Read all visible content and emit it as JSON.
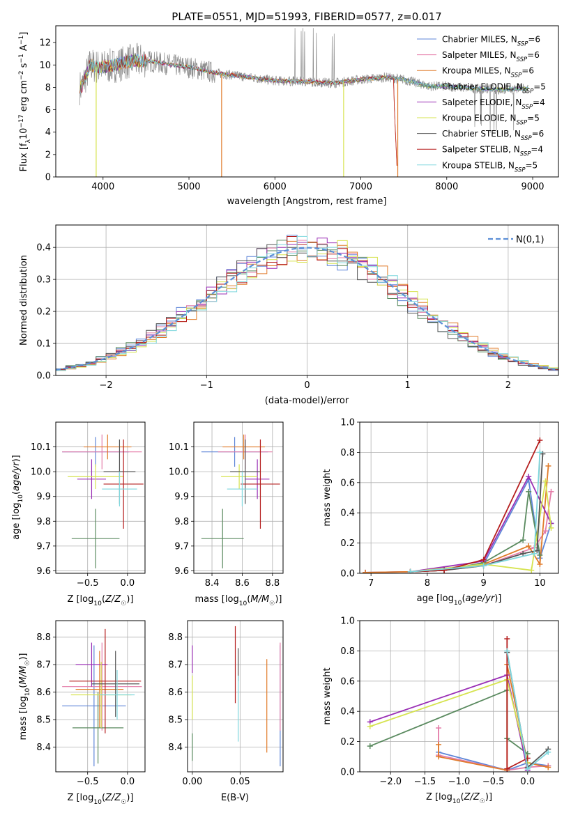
{
  "figure": {
    "title": "PLATE=0551, MJD=51993, FIBERID=0577, z=0.017"
  },
  "chart_data": [
    {
      "id": "spectrum",
      "type": "line",
      "title": "PLATE=0551, MJD=51993, FIBERID=0577, z=0.017",
      "xlabel": "wavelength [Angstrom, rest frame]",
      "ylabel": "Flux [f_λ10^{-17} erg cm^{-2} s^{-1} A^{-1}]",
      "xlim": [
        3450,
        9300
      ],
      "ylim": [
        0,
        13.5
      ],
      "xticks": [
        4000,
        5000,
        6000,
        7000,
        8000,
        9000
      ],
      "yticks": [
        0,
        2,
        4,
        6,
        8,
        10,
        12
      ],
      "grid": false,
      "legend_position": "top-right",
      "data_approx": {
        "x": [
          3750,
          3850,
          3950,
          4100,
          4300,
          4500,
          4800,
          5000,
          5300,
          5600,
          6000,
          6400,
          6700,
          7000,
          7300,
          7500,
          7800,
          8000,
          8300,
          8600,
          8900
        ],
        "y": [
          8.0,
          10.0,
          9.8,
          9.9,
          10.3,
          10.4,
          10.0,
          9.8,
          9.3,
          9.0,
          8.6,
          8.5,
          8.4,
          8.7,
          8.9,
          8.7,
          8.1,
          8.1,
          7.9,
          7.8,
          7.9
        ]
      },
      "series": [
        {
          "name": "Chabrier MILES, N_SSP=6",
          "name_main": "Chabrier MILES, N",
          "name_sub": "SSP",
          "name_tail": "=6",
          "color": "#5f86d8"
        },
        {
          "name": "Salpeter MILES, N_SSP=6",
          "name_main": "Salpeter MILES, N",
          "name_sub": "SSP",
          "name_tail": "=6",
          "color": "#e47ca8"
        },
        {
          "name": "Kroupa MILES, N_SSP=6",
          "name_main": "Kroupa MILES, N",
          "name_sub": "SSP",
          "name_tail": "=6",
          "color": "#e07b2a"
        },
        {
          "name": "Chabrier ELODIE, N_SSP=5",
          "name_main": "Chabrier ELODIE, N",
          "name_sub": "SSP",
          "name_tail": "=5",
          "color": "#5a8a5f"
        },
        {
          "name": "Salpeter ELODIE, N_SSP=4",
          "name_main": "Salpeter ELODIE, N",
          "name_sub": "SSP",
          "name_tail": "=4",
          "color": "#9a2fb5"
        },
        {
          "name": "Kroupa ELODIE, N_SSP=5",
          "name_main": "Kroupa ELODIE, N",
          "name_sub": "SSP",
          "name_tail": "=5",
          "color": "#d6e34f"
        },
        {
          "name": "Chabrier STELIB, N_SSP=6",
          "name_main": "Chabrier STELIB, N",
          "name_sub": "SSP",
          "name_tail": "=6",
          "color": "#555555"
        },
        {
          "name": "Salpeter STELIB, N_SSP=4",
          "name_main": "Salpeter STELIB, N",
          "name_sub": "SSP",
          "name_tail": "=4",
          "color": "#b51e1e"
        },
        {
          "name": "Kroupa STELIB, N_SSP=5",
          "name_main": "Kroupa STELIB, N",
          "name_sub": "SSP",
          "name_tail": "=5",
          "color": "#7fd7dd"
        }
      ],
      "data_color": "#8c8c8c"
    },
    {
      "id": "residuals",
      "type": "histogram",
      "xlabel": "(data-model)/error",
      "ylabel": "Normed distribution",
      "xlim": [
        -2.5,
        2.5
      ],
      "ylim": [
        0,
        0.47
      ],
      "xticks": [
        -2,
        -1,
        0,
        1,
        2
      ],
      "yticks": [
        0.0,
        0.1,
        0.2,
        0.3,
        0.4
      ],
      "grid": true,
      "legend_position": "top-right",
      "reference_curve": {
        "name": "N(0,1)",
        "mu": 0,
        "sigma": 1,
        "color": "#5b8ed6",
        "dashed": true
      },
      "bin_width": 0.1
    },
    {
      "id": "age_vs_Z",
      "type": "errorbar",
      "xlabel": "Z [log10(Z/Z☉)]",
      "ylabel": "age [log10(age/yr)]",
      "xlim": [
        -0.9,
        0.22
      ],
      "ylim": [
        9.59,
        10.2
      ],
      "xticks": [
        -0.5,
        0.0
      ],
      "yticks": [
        9.6,
        9.7,
        9.8,
        9.9,
        10.0,
        10.1
      ],
      "grid": true,
      "points": [
        {
          "color": "#5f86d8",
          "x": -0.4,
          "xerr": 0.42,
          "y": 10.08,
          "yerr": 0.06
        },
        {
          "color": "#e47ca8",
          "x": -0.32,
          "xerr": 0.5,
          "y": 10.08,
          "yerr": 0.07
        },
        {
          "color": "#e07b2a",
          "x": -0.25,
          "xerr": 0.3,
          "y": 10.1,
          "yerr": 0.05
        },
        {
          "color": "#5a8a5f",
          "x": -0.4,
          "xerr": 0.3,
          "y": 9.73,
          "yerr": 0.12
        },
        {
          "color": "#9a2fb5",
          "x": -0.45,
          "xerr": 0.18,
          "y": 9.97,
          "yerr": 0.08
        },
        {
          "color": "#d6e34f",
          "x": -0.4,
          "xerr": 0.35,
          "y": 9.98,
          "yerr": 0.05
        },
        {
          "color": "#555555",
          "x": -0.1,
          "xerr": 0.2,
          "y": 10.0,
          "yerr": 0.13
        },
        {
          "color": "#b51e1e",
          "x": -0.05,
          "xerr": 0.25,
          "y": 9.95,
          "yerr": 0.18
        },
        {
          "color": "#7fd7dd",
          "x": -0.1,
          "xerr": 0.22,
          "y": 9.93,
          "yerr": 0.07
        }
      ]
    },
    {
      "id": "age_vs_mass",
      "type": "errorbar",
      "xlabel": "mass [log10(M/M☉)]",
      "ylabel": "",
      "xlim": [
        8.28,
        8.87
      ],
      "ylim": [
        9.59,
        10.2
      ],
      "xticks": [
        8.4,
        8.6,
        8.8
      ],
      "yticks": [
        9.6,
        9.7,
        9.8,
        9.9,
        10.0,
        10.1
      ],
      "grid": true,
      "points": [
        {
          "color": "#5f86d8",
          "x": 8.55,
          "xerr": 0.22,
          "y": 10.08,
          "yerr": 0.06
        },
        {
          "color": "#e47ca8",
          "x": 8.62,
          "xerr": 0.18,
          "y": 10.08,
          "yerr": 0.07
        },
        {
          "color": "#e07b2a",
          "x": 8.61,
          "xerr": 0.14,
          "y": 10.1,
          "yerr": 0.05
        },
        {
          "color": "#5a8a5f",
          "x": 8.47,
          "xerr": 0.14,
          "y": 9.73,
          "yerr": 0.12
        },
        {
          "color": "#9a2fb5",
          "x": 8.7,
          "xerr": 0.08,
          "y": 9.97,
          "yerr": 0.08
        },
        {
          "color": "#d6e34f",
          "x": 8.58,
          "xerr": 0.12,
          "y": 9.98,
          "yerr": 0.05
        },
        {
          "color": "#555555",
          "x": 8.62,
          "xerr": 0.1,
          "y": 10.0,
          "yerr": 0.13
        },
        {
          "color": "#b51e1e",
          "x": 8.72,
          "xerr": 0.13,
          "y": 9.95,
          "yerr": 0.18
        },
        {
          "color": "#7fd7dd",
          "x": 8.6,
          "xerr": 0.1,
          "y": 9.93,
          "yerr": 0.07
        }
      ]
    },
    {
      "id": "weight_vs_age",
      "type": "line",
      "xlabel": "age [log10(age/yr)]",
      "ylabel": "mass weight",
      "xlim": [
        6.8,
        10.33
      ],
      "ylim": [
        0,
        1.0
      ],
      "xticks": [
        7,
        8,
        9,
        10
      ],
      "yticks": [
        0.0,
        0.2,
        0.4,
        0.6,
        0.8,
        1.0
      ],
      "grid": true,
      "series": [
        {
          "color": "#5f86d8",
          "x": [
            6.9,
            7.7,
            8.3,
            9.0,
            9.8,
            10.0,
            10.2
          ],
          "y": [
            0.005,
            0.01,
            0.02,
            0.06,
            0.62,
            0.1,
            0.33
          ]
        },
        {
          "color": "#e47ca8",
          "x": [
            6.9,
            7.7,
            8.3,
            9.0,
            9.9,
            10.1,
            10.2
          ],
          "y": [
            0.005,
            0.01,
            0.02,
            0.05,
            0.17,
            0.28,
            0.54
          ]
        },
        {
          "color": "#e07b2a",
          "x": [
            6.9,
            7.7,
            8.3,
            9.0,
            9.8,
            10.0,
            10.15
          ],
          "y": [
            0.005,
            0.01,
            0.02,
            0.06,
            0.18,
            0.06,
            0.71
          ]
        },
        {
          "color": "#5a8a5f",
          "x": [
            7.7,
            8.3,
            9.0,
            9.7,
            9.8,
            10.0
          ],
          "y": [
            0.01,
            0.02,
            0.07,
            0.22,
            0.54,
            0.12
          ]
        },
        {
          "color": "#9a2fb5",
          "x": [
            7.7,
            9.0,
            9.8,
            10.2
          ],
          "y": [
            0.01,
            0.08,
            0.64,
            0.33
          ]
        },
        {
          "color": "#d6e34f",
          "x": [
            7.7,
            9.0,
            9.85,
            10.1,
            10.2
          ],
          "y": [
            0.01,
            0.06,
            0.02,
            0.61,
            0.3
          ]
        },
        {
          "color": "#555555",
          "x": [
            7.7,
            8.3,
            9.0,
            9.7,
            9.95,
            10.05
          ],
          "y": [
            0.01,
            0.02,
            0.05,
            0.13,
            0.15,
            0.79
          ]
        },
        {
          "color": "#b51e1e",
          "x": [
            7.7,
            8.3,
            9.0,
            10.0
          ],
          "y": [
            0.01,
            0.02,
            0.09,
            0.88
          ]
        },
        {
          "color": "#7fd7dd",
          "x": [
            7.7,
            9.0,
            9.9,
            10.0
          ],
          "y": [
            0.01,
            0.05,
            0.13,
            0.8
          ]
        }
      ]
    },
    {
      "id": "mass_vs_Z",
      "type": "errorbar",
      "xlabel": "Z [log10(Z/Z☉)]",
      "ylabel": "mass [log10(M/M☉)]",
      "xlim": [
        -0.9,
        0.22
      ],
      "ylim": [
        8.31,
        8.86
      ],
      "xticks": [
        -0.5,
        0.0
      ],
      "yticks": [
        8.4,
        8.5,
        8.6,
        8.7,
        8.8
      ],
      "grid": true,
      "points": [
        {
          "color": "#5f86d8",
          "x": -0.42,
          "xerr": 0.4,
          "y": 8.55,
          "yerr": 0.22
        },
        {
          "color": "#e47ca8",
          "x": -0.32,
          "xerr": 0.5,
          "y": 8.62,
          "yerr": 0.16
        },
        {
          "color": "#e07b2a",
          "x": -0.35,
          "xerr": 0.3,
          "y": 8.61,
          "yerr": 0.14
        },
        {
          "color": "#5a8a5f",
          "x": -0.37,
          "xerr": 0.32,
          "y": 8.47,
          "yerr": 0.13
        },
        {
          "color": "#9a2fb5",
          "x": -0.45,
          "xerr": 0.2,
          "y": 8.7,
          "yerr": 0.08
        },
        {
          "color": "#d6e34f",
          "x": -0.33,
          "xerr": 0.38,
          "y": 8.59,
          "yerr": 0.12
        },
        {
          "color": "#555555",
          "x": -0.15,
          "xerr": 0.3,
          "y": 8.63,
          "yerr": 0.12
        },
        {
          "color": "#b51e1e",
          "x": -0.28,
          "xerr": 0.45,
          "y": 8.64,
          "yerr": 0.19
        },
        {
          "color": "#7fd7dd",
          "x": -0.13,
          "xerr": 0.22,
          "y": 8.59,
          "yerr": 0.09
        }
      ]
    },
    {
      "id": "mass_vs_ebv",
      "type": "errorbar",
      "xlabel": "E(B-V)",
      "ylabel": "",
      "xlim": [
        -0.005,
        0.095
      ],
      "ylim": [
        8.31,
        8.86
      ],
      "xticks": [
        0.0,
        0.05
      ],
      "yticks": [
        8.4,
        8.5,
        8.6,
        8.7,
        8.8
      ],
      "grid": true,
      "points": [
        {
          "color": "#5f86d8",
          "x": 0.092,
          "y": 8.55,
          "yerr": 0.22
        },
        {
          "color": "#e47ca8",
          "x": 0.092,
          "y": 8.62,
          "yerr": 0.16
        },
        {
          "color": "#e07b2a",
          "x": 0.078,
          "y": 8.55,
          "yerr": 0.17
        },
        {
          "color": "#5a8a5f",
          "x": 0.0,
          "y": 8.4,
          "yerr": 0.05
        },
        {
          "color": "#9a2fb5",
          "x": 0.0,
          "y": 8.72,
          "yerr": 0.05
        },
        {
          "color": "#d6e34f",
          "x": 0.0,
          "y": 8.58,
          "yerr": 0.08
        },
        {
          "color": "#555555",
          "x": 0.048,
          "y": 8.7,
          "yerr": 0.06
        },
        {
          "color": "#b51e1e",
          "x": 0.045,
          "y": 8.7,
          "yerr": 0.14
        },
        {
          "color": "#7fd7dd",
          "x": 0.048,
          "y": 8.54,
          "yerr": 0.12
        }
      ]
    },
    {
      "id": "weight_vs_Z",
      "type": "line",
      "xlabel": "Z [log10(Z/Z☉)]",
      "ylabel": "mass weight",
      "xlim": [
        -2.45,
        0.45
      ],
      "ylim": [
        0,
        1.0
      ],
      "xticks": [
        -2.0,
        -1.5,
        -1.0,
        -0.5,
        0.0
      ],
      "yticks": [
        0.0,
        0.2,
        0.4,
        0.6,
        0.8,
        1.0
      ],
      "grid": true,
      "series": [
        {
          "color": "#5f86d8",
          "x": [
            -1.3,
            -0.3,
            0.0,
            0.3
          ],
          "y": [
            0.13,
            0.01,
            0.06,
            0.04
          ]
        },
        {
          "color": "#e47ca8",
          "x": [
            -1.3,
            -1.3,
            -0.3,
            0.0,
            0.3
          ],
          "y": [
            0.29,
            0.11,
            0.01,
            0.03,
            0.04
          ]
        },
        {
          "color": "#e07b2a",
          "x": [
            -1.3,
            -1.3,
            -0.3,
            -0.3,
            0.0,
            0.3
          ],
          "y": [
            0.18,
            0.1,
            0.01,
            0.71,
            0.06,
            0.03
          ]
        },
        {
          "color": "#5a8a5f",
          "x": [
            -2.3,
            -0.3,
            -0.3,
            0.0
          ],
          "y": [
            0.17,
            0.54,
            0.22,
            0.12
          ]
        },
        {
          "color": "#9a2fb5",
          "x": [
            -2.3,
            -0.3,
            0.0
          ],
          "y": [
            0.33,
            0.64,
            0.01
          ]
        },
        {
          "color": "#d6e34f",
          "x": [
            -2.3,
            -0.3,
            0.0
          ],
          "y": [
            0.3,
            0.61,
            0.06
          ]
        },
        {
          "color": "#555555",
          "x": [
            -0.3,
            0.0,
            0.3
          ],
          "y": [
            0.79,
            0.03,
            0.15
          ]
        },
        {
          "color": "#b51e1e",
          "x": [
            -0.3,
            -0.3,
            0.0
          ],
          "y": [
            0.88,
            0.02,
            0.09
          ]
        },
        {
          "color": "#7fd7dd",
          "x": [
            -0.3,
            0.0,
            0.3
          ],
          "y": [
            0.8,
            0.02,
            0.13
          ]
        }
      ]
    }
  ]
}
